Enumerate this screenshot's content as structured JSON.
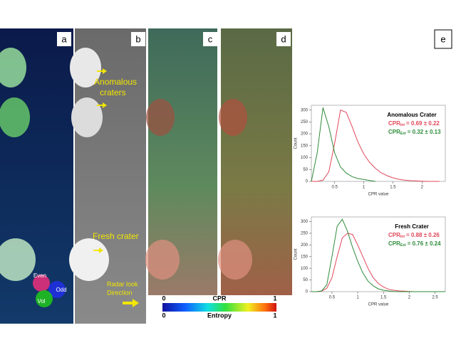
{
  "panels": [
    {
      "label": "a"
    },
    {
      "label": "b"
    },
    {
      "label": "c"
    },
    {
      "label": "d"
    }
  ],
  "panel_e": "e",
  "annotations": {
    "anomalous": [
      "Anomalous",
      "craters"
    ],
    "fresh": "Fresh crater",
    "radar": [
      "Radar look",
      "Direction"
    ],
    "polarization": [
      "Even",
      "Odd",
      "Vol"
    ]
  },
  "colorbars": [
    {
      "title": "CPR",
      "min": 0,
      "max": 1
    },
    {
      "title": "Entropy",
      "min": 0,
      "max": 1
    }
  ],
  "chart_data": [
    {
      "type": "line",
      "title": "Anomalous Crater",
      "x_label": "CPR value",
      "y_label": "Count",
      "x": [
        0.1,
        0.2,
        0.3,
        0.4,
        0.5,
        0.6,
        0.7,
        0.8,
        0.9,
        1.0,
        1.1,
        1.2,
        1.3,
        1.4,
        1.5,
        1.6,
        1.7,
        1.8,
        1.9,
        2.0,
        2.1,
        2.2,
        2.3
      ],
      "series": [
        {
          "name": "CPR",
          "subscript": "Int",
          "stat": "= 0.69 ± 0.22",
          "color": "#e0475a",
          "values": [
            0,
            0,
            5,
            40,
            160,
            300,
            290,
            230,
            165,
            115,
            80,
            55,
            36,
            24,
            15,
            9,
            5,
            3,
            2,
            1,
            0,
            0,
            0
          ]
        },
        {
          "name": "CPR",
          "subscript": "Ext",
          "stat": "= 0.32 ± 0.13",
          "color": "#2e8b3a",
          "values": [
            0,
            120,
            310,
            230,
            120,
            60,
            35,
            20,
            12,
            8,
            4,
            0,
            null,
            null,
            null,
            null,
            null,
            null,
            null,
            null,
            null,
            null,
            null
          ]
        }
      ],
      "xlim": [
        0.1,
        2.4
      ],
      "xticks": [
        0.5,
        1.0,
        1.5,
        2.0
      ],
      "ylim": [
        0,
        320
      ],
      "yticks": [
        0,
        50,
        100,
        150,
        200,
        250,
        300
      ]
    },
    {
      "type": "line",
      "title": "Fresh Crater",
      "x_label": "CPR value",
      "y_label": "Count",
      "x": [
        0.1,
        0.2,
        0.3,
        0.4,
        0.5,
        0.6,
        0.7,
        0.8,
        0.9,
        1.0,
        1.1,
        1.2,
        1.3,
        1.4,
        1.5,
        1.6,
        1.7,
        1.8,
        1.9,
        2.0,
        2.1,
        2.2,
        2.3,
        2.4,
        2.5,
        2.6,
        2.7
      ],
      "series": [
        {
          "name": "CPR",
          "subscript": "Int",
          "stat": "= 0.88 ± 0.26",
          "color": "#e0475a",
          "values": [
            0,
            0,
            2,
            15,
            60,
            150,
            230,
            250,
            245,
            200,
            150,
            100,
            60,
            35,
            20,
            10,
            6,
            3,
            2,
            1,
            0,
            0,
            0,
            0,
            0,
            0,
            0
          ]
        },
        {
          "name": "CPR",
          "subscript": "Ext",
          "stat": "= 0.76 ± 0.24",
          "color": "#2e8b3a",
          "values": [
            0,
            0,
            3,
            30,
            150,
            280,
            310,
            260,
            190,
            130,
            80,
            45,
            25,
            12,
            6,
            3,
            1,
            0,
            0,
            0,
            0,
            0,
            0,
            0,
            0,
            0,
            0
          ]
        }
      ],
      "xlim": [
        0.1,
        2.7
      ],
      "xticks": [
        0.5,
        1.0,
        1.5,
        2.0,
        2.5
      ],
      "ylim": [
        0,
        320
      ],
      "yticks": [
        0,
        50,
        100,
        150,
        200,
        250,
        300
      ]
    }
  ]
}
